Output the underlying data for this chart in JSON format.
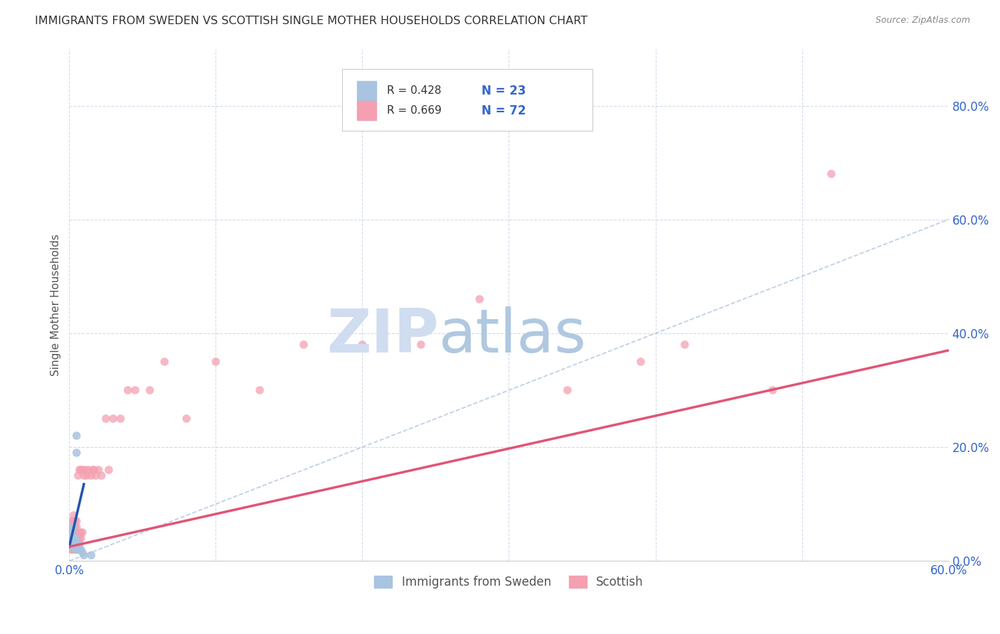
{
  "title": "IMMIGRANTS FROM SWEDEN VS SCOTTISH SINGLE MOTHER HOUSEHOLDS CORRELATION CHART",
  "source": "Source: ZipAtlas.com",
  "xlabel_blue": "Immigrants from Sweden",
  "xlabel_pink": "Scottish",
  "ylabel": "Single Mother Households",
  "xlim": [
    0,
    0.6
  ],
  "ylim": [
    0,
    0.9
  ],
  "legend_blue_R": "R = 0.428",
  "legend_blue_N": "N = 23",
  "legend_pink_R": "R = 0.669",
  "legend_pink_N": "N = 72",
  "blue_color": "#a8c4e0",
  "pink_color": "#f4a0b0",
  "blue_line_color": "#2255aa",
  "pink_line_color": "#e05575",
  "diag_line_color": "#a0b8d8",
  "grid_color": "#d0d8e8",
  "title_color": "#333333",
  "source_color": "#888888",
  "ylabel_color": "#555555",
  "axis_label_color": "#3366cc",
  "legend_R_color": "#333333",
  "legend_N_color": "#3366cc",
  "blue_scatter_x": [
    0.001,
    0.001,
    0.002,
    0.002,
    0.002,
    0.003,
    0.003,
    0.003,
    0.003,
    0.004,
    0.004,
    0.004,
    0.005,
    0.005,
    0.005,
    0.005,
    0.006,
    0.006,
    0.007,
    0.008,
    0.009,
    0.01,
    0.015
  ],
  "blue_scatter_y": [
    0.03,
    0.04,
    0.03,
    0.035,
    0.05,
    0.025,
    0.03,
    0.04,
    0.06,
    0.02,
    0.03,
    0.04,
    0.025,
    0.03,
    0.22,
    0.19,
    0.03,
    0.025,
    0.02,
    0.02,
    0.015,
    0.01,
    0.01
  ],
  "pink_scatter_x": [
    0.001,
    0.001,
    0.001,
    0.001,
    0.002,
    0.002,
    0.002,
    0.002,
    0.002,
    0.002,
    0.003,
    0.003,
    0.003,
    0.003,
    0.003,
    0.003,
    0.003,
    0.004,
    0.004,
    0.004,
    0.004,
    0.004,
    0.004,
    0.005,
    0.005,
    0.005,
    0.005,
    0.005,
    0.005,
    0.006,
    0.006,
    0.006,
    0.006,
    0.007,
    0.007,
    0.007,
    0.007,
    0.008,
    0.008,
    0.008,
    0.009,
    0.009,
    0.01,
    0.011,
    0.012,
    0.013,
    0.015,
    0.016,
    0.017,
    0.018,
    0.02,
    0.022,
    0.025,
    0.027,
    0.03,
    0.035,
    0.04,
    0.045,
    0.055,
    0.065,
    0.08,
    0.1,
    0.13,
    0.16,
    0.2,
    0.24,
    0.28,
    0.34,
    0.39,
    0.42,
    0.48,
    0.52
  ],
  "pink_scatter_y": [
    0.02,
    0.03,
    0.04,
    0.05,
    0.02,
    0.03,
    0.04,
    0.05,
    0.06,
    0.07,
    0.02,
    0.03,
    0.04,
    0.05,
    0.06,
    0.07,
    0.08,
    0.02,
    0.03,
    0.04,
    0.05,
    0.06,
    0.07,
    0.02,
    0.03,
    0.04,
    0.05,
    0.06,
    0.07,
    0.02,
    0.03,
    0.04,
    0.15,
    0.03,
    0.04,
    0.05,
    0.16,
    0.04,
    0.05,
    0.16,
    0.05,
    0.16,
    0.15,
    0.16,
    0.15,
    0.16,
    0.15,
    0.16,
    0.16,
    0.15,
    0.16,
    0.15,
    0.25,
    0.16,
    0.25,
    0.25,
    0.3,
    0.3,
    0.3,
    0.35,
    0.25,
    0.35,
    0.3,
    0.38,
    0.38,
    0.38,
    0.46,
    0.3,
    0.35,
    0.38,
    0.3,
    0.68
  ],
  "blue_trendline_x": [
    0.0,
    0.01
  ],
  "blue_trendline_y": [
    0.025,
    0.135
  ],
  "pink_trendline_x": [
    0.0,
    0.6
  ],
  "pink_trendline_y": [
    0.025,
    0.37
  ],
  "watermark_zip": "ZIP",
  "watermark_atlas": "atlas",
  "watermark_color_zip": "#d0dcf0",
  "watermark_color_atlas": "#b0c8e0",
  "scatter_size": 70
}
